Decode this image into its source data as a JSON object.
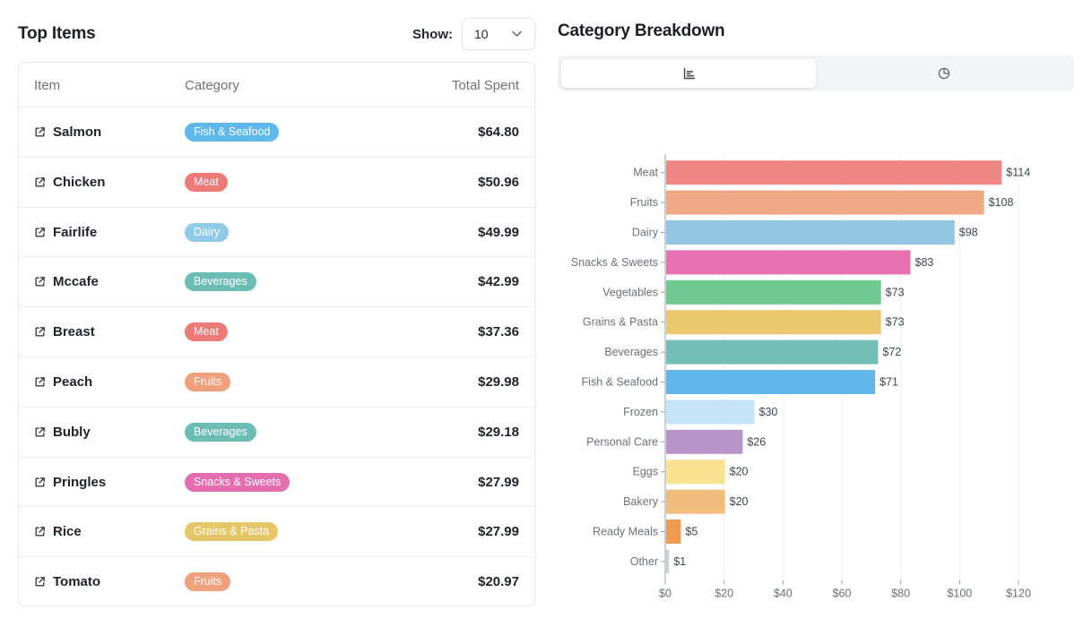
{
  "top_items": {
    "title": "Top Items",
    "show_label": "Show:",
    "show_value": "10",
    "columns": {
      "item": "Item",
      "category": "Category",
      "total": "Total Spent"
    },
    "rows": [
      {
        "name": "Salmon",
        "category": "Fish & Seafood",
        "color": "#5fb8ec",
        "total": "$64.80"
      },
      {
        "name": "Chicken",
        "category": "Meat",
        "color": "#ec7b78",
        "total": "$50.96"
      },
      {
        "name": "Fairlife",
        "category": "Dairy",
        "color": "#8fcbe6",
        "total": "$49.99"
      },
      {
        "name": "Mccafe",
        "category": "Beverages",
        "color": "#6bbcb4",
        "total": "$42.99"
      },
      {
        "name": "Breast",
        "category": "Meat",
        "color": "#ec7b78",
        "total": "$37.36"
      },
      {
        "name": "Peach",
        "category": "Fruits",
        "color": "#efa07c",
        "total": "$29.98"
      },
      {
        "name": "Bubly",
        "category": "Beverages",
        "color": "#6bbcb4",
        "total": "$29.18"
      },
      {
        "name": "Pringles",
        "category": "Snacks & Sweets",
        "color": "#e46db0",
        "total": "$27.99"
      },
      {
        "name": "Rice",
        "category": "Grains & Pasta",
        "color": "#e6c566",
        "total": "$27.99"
      },
      {
        "name": "Tomato",
        "category": "Fruits",
        "color": "#efa07c",
        "total": "$20.97"
      }
    ]
  },
  "breakdown": {
    "title": "Category Breakdown",
    "toggle": [
      {
        "icon": "bar-chart-icon",
        "active": true
      },
      {
        "icon": "pie-chart-icon",
        "active": false
      }
    ]
  },
  "chart_data": {
    "type": "bar",
    "orientation": "horizontal",
    "categories": [
      "Meat",
      "Fruits",
      "Dairy",
      "Snacks & Sweets",
      "Vegetables",
      "Grains & Pasta",
      "Beverages",
      "Fish & Seafood",
      "Frozen",
      "Personal Care",
      "Eggs",
      "Bakery",
      "Ready Meals",
      "Other"
    ],
    "values": [
      114,
      108,
      98,
      83,
      73,
      73,
      72,
      71,
      30,
      26,
      20,
      20,
      5,
      1
    ],
    "value_labels": [
      "$114",
      "$108",
      "$98",
      "$83",
      "$73",
      "$73",
      "$72",
      "$71",
      "$30",
      "$26",
      "$20",
      "$20",
      "$5",
      "$1"
    ],
    "colors": [
      "#ef8683",
      "#f0a786",
      "#90c6e2",
      "#e771b2",
      "#6fca8f",
      "#ebc76e",
      "#72bfb8",
      "#63b5ee",
      "#c6e4f7",
      "#b894c9",
      "#f8e28f",
      "#f2bc7c",
      "#ef9a4f",
      "#c9d0d6"
    ],
    "xlim": [
      0,
      120
    ],
    "xticks": [
      0,
      20,
      40,
      60,
      80,
      100,
      120
    ],
    "xtick_labels": [
      "$0",
      "$20",
      "$40",
      "$60",
      "$80",
      "$100",
      "$120"
    ],
    "grid": true,
    "title": "",
    "xlabel": "",
    "ylabel": ""
  }
}
